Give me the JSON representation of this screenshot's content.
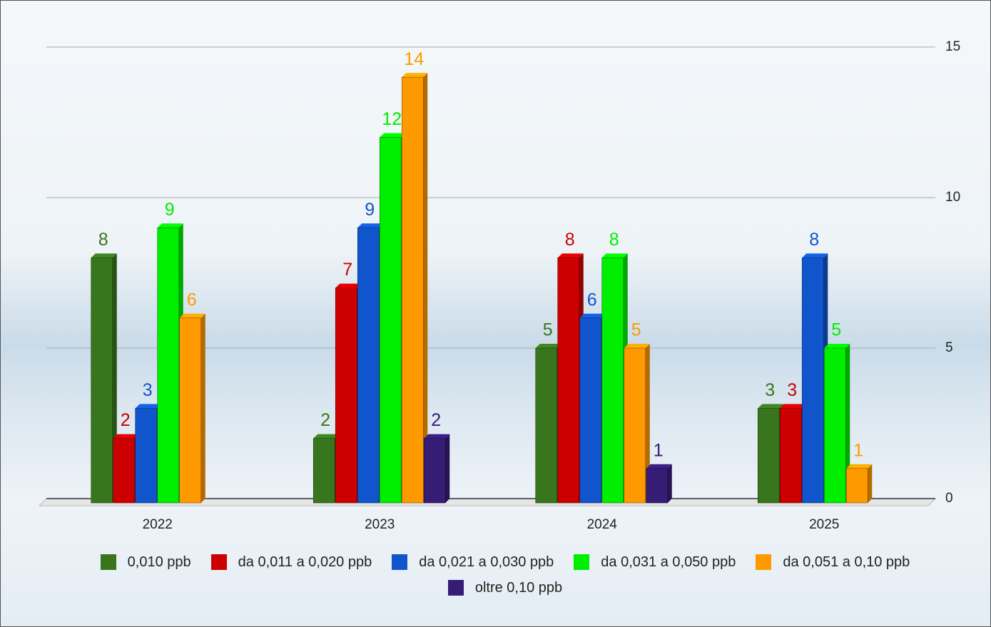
{
  "chart_data": {
    "type": "bar3d",
    "categories": [
      "2022",
      "2023",
      "2024",
      "2025"
    ],
    "series": [
      {
        "name": "0,010 ppb",
        "color": "#38761d",
        "values": [
          8,
          2,
          5,
          3
        ]
      },
      {
        "name": "da 0,011 a 0,020 ppb",
        "color": "#cc0000",
        "values": [
          2,
          7,
          8,
          3
        ]
      },
      {
        "name": "da 0,021 a 0,030 ppb",
        "color": "#1155cc",
        "values": [
          3,
          9,
          6,
          8
        ]
      },
      {
        "name": "da 0,031 a 0,050 ppb",
        "color": "#00ee00",
        "values": [
          9,
          12,
          8,
          5
        ]
      },
      {
        "name": "da 0,051 a 0,10 ppb",
        "color": "#ff9900",
        "values": [
          6,
          14,
          5,
          1
        ]
      },
      {
        "name": "oltre 0,10 ppb",
        "color": "#351c75",
        "values": [
          null,
          2,
          1,
          null
        ]
      }
    ],
    "ylim": [
      0,
      15
    ],
    "yticks": [
      0,
      5,
      10,
      15
    ],
    "grid": true,
    "y_axis_side": "right",
    "legend": "bottom"
  }
}
